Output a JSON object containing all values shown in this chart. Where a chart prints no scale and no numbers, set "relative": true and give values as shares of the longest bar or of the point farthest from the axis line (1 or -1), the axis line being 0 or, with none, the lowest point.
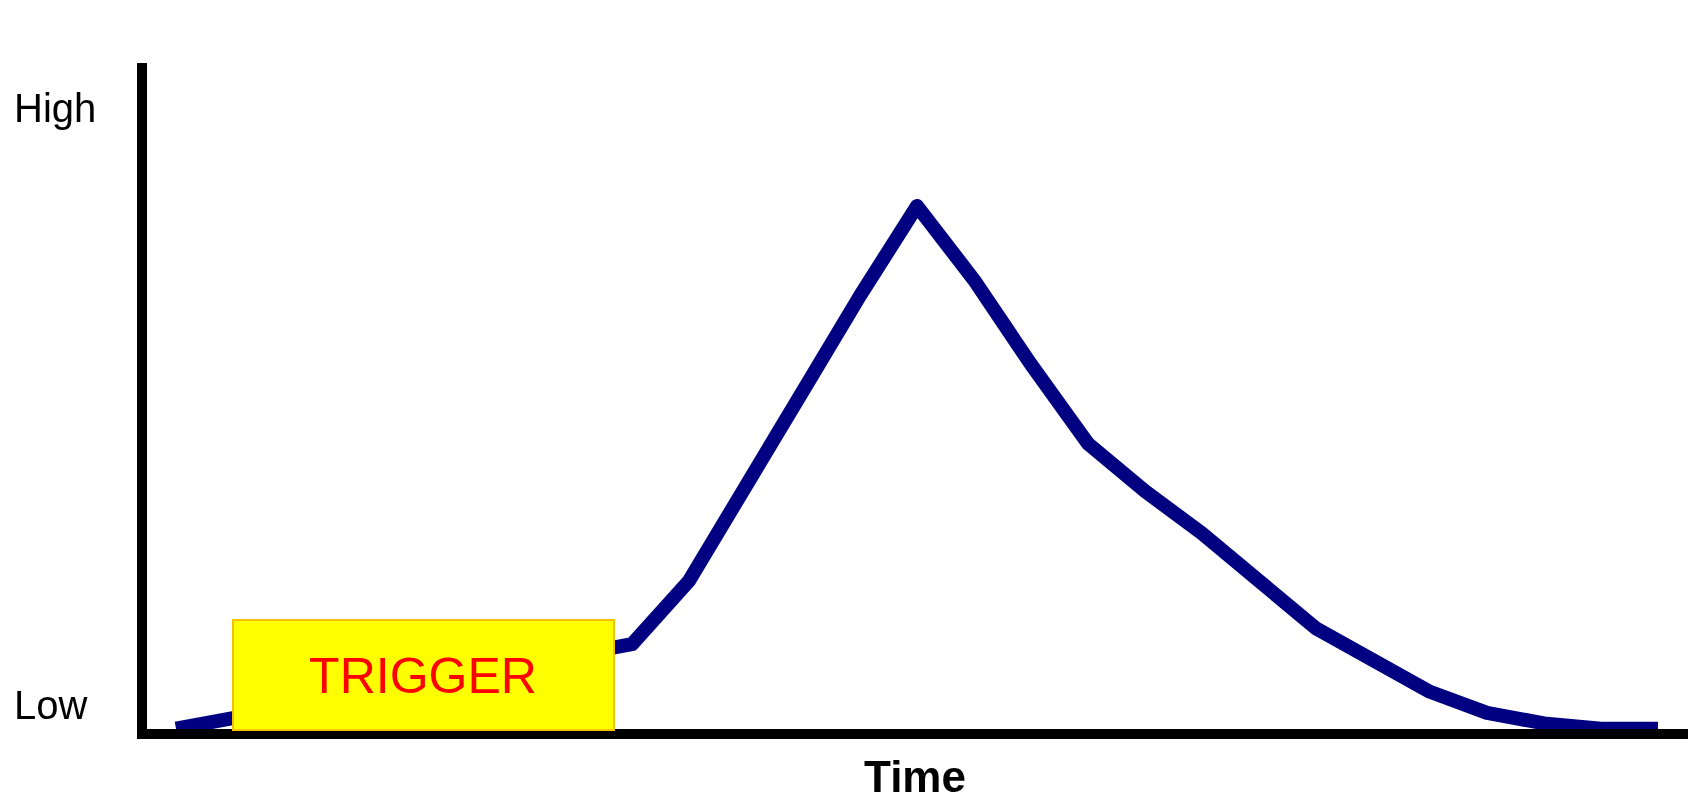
{
  "chart_data": {
    "type": "line",
    "relative": true,
    "xlabel": "Time",
    "categories": [
      null,
      null,
      null,
      null,
      null,
      null,
      null,
      null,
      null,
      null,
      null,
      null,
      null,
      null,
      null,
      null,
      null,
      null,
      null,
      null,
      null,
      null,
      null,
      null,
      null,
      null,
      null
    ],
    "series": [
      {
        "color": "#000080",
        "values": [
          0.01,
          0.03,
          null,
          null,
          null,
          null,
          null,
          null,
          0.17,
          0.29,
          0.47,
          0.65,
          0.83,
          1.0,
          0.86,
          0.7,
          0.55,
          0.46,
          0.38,
          0.29,
          0.2,
          0.14,
          0.08,
          0.04,
          0.02,
          0.01,
          0.01
        ]
      }
    ],
    "annotations": [
      "High",
      "Low",
      "TRIGGER"
    ],
    "grid": false,
    "marker": "none",
    "line_style": "solid"
  }
}
